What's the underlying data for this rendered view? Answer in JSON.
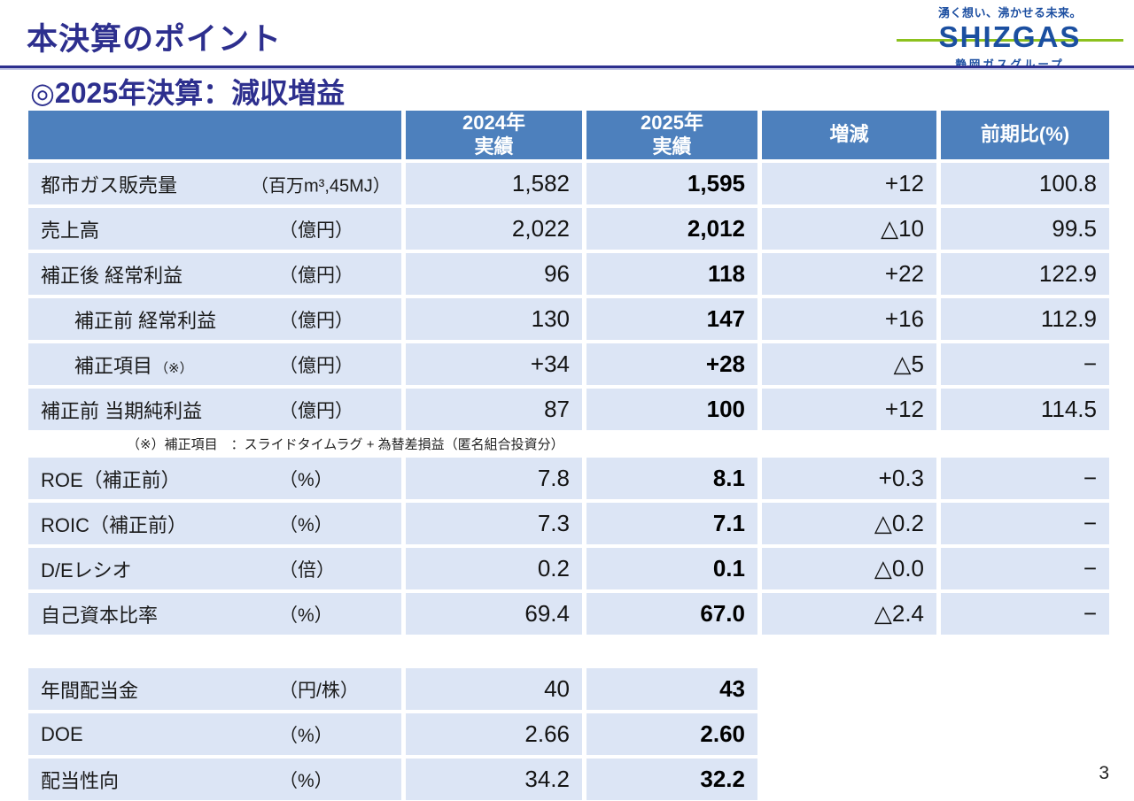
{
  "slide": {
    "title": "本決算のポイント",
    "subtitle": "◎2025年決算：減収増益",
    "page_number": "3"
  },
  "logo": {
    "tagline": "湧く想い、沸かせる未来。",
    "brand": "SHIZGAS",
    "group_name": "静岡ガスグループ"
  },
  "colors": {
    "title_navy": "#2d2f8e",
    "table_header_blue": "#4d80bd",
    "table_row_blue": "#dce5f5",
    "logo_blue": "#1b4fa0",
    "logo_green": "#8cc11e"
  },
  "results_table": {
    "columns": {
      "y2024_line1": "2024年",
      "y2024_line2": "実績",
      "y2025_line1": "2025年",
      "y2025_line2": "実績",
      "diff": "増減",
      "yoy": "前期比(%)"
    },
    "rows": [
      {
        "label": "都市ガス販売量",
        "unit": "（百万m³,45MJ）",
        "y2024": "1,582",
        "y2025": "1,595",
        "diff": "+12",
        "yoy": "100.8"
      },
      {
        "label": "売上高",
        "unit": "（億円）",
        "y2024": "2,022",
        "y2025": "2,012",
        "diff": "△10",
        "yoy": "99.5"
      },
      {
        "label": "補正後 経常利益",
        "unit": "（億円）",
        "y2024": "96",
        "y2025": "118",
        "diff": "+22",
        "yoy": "122.9"
      },
      {
        "label": "補正前 経常利益",
        "unit": "（億円）",
        "y2024": "130",
        "y2025": "147",
        "diff": "+16",
        "yoy": "112.9"
      },
      {
        "label": "補正項目",
        "suffix": "（※）",
        "unit": "（億円）",
        "y2024": "+34",
        "y2025": "+28",
        "diff": "△5",
        "yoy": "−"
      },
      {
        "label": "補正前 当期純利益",
        "unit": "（億円）",
        "y2024": "87",
        "y2025": "100",
        "diff": "+12",
        "yoy": "114.5"
      }
    ],
    "note": "（※）補正項目　：スライドタイムラグ + 為替差損益（匿名組合投資分）"
  },
  "ratios_table": {
    "rows": [
      {
        "label": "ROE（補正前）",
        "unit": "（%）",
        "y2024": "7.8",
        "y2025": "8.1",
        "diff": "+0.3",
        "yoy": "−"
      },
      {
        "label": "ROIC（補正前）",
        "unit": "（%）",
        "y2024": "7.3",
        "y2025": "7.1",
        "diff": "△0.2",
        "yoy": "−"
      },
      {
        "label": "D/Eレシオ",
        "unit": "（倍）",
        "y2024": "0.2",
        "y2025": "0.1",
        "diff": "△0.0",
        "yoy": "−"
      },
      {
        "label": "自己資本比率",
        "unit": "（%）",
        "y2024": "69.4",
        "y2025": "67.0",
        "diff": "△2.4",
        "yoy": "−"
      }
    ]
  },
  "dividend_table": {
    "rows": [
      {
        "label": "年間配当金",
        "unit": "（円/株）",
        "y2024": "40",
        "y2025": "43"
      },
      {
        "label": "DOE",
        "unit": "（%）",
        "y2024": "2.66",
        "y2025": "2.60"
      },
      {
        "label": "配当性向",
        "unit": "（%）",
        "y2024": "34.2",
        "y2025": "32.2"
      }
    ]
  }
}
